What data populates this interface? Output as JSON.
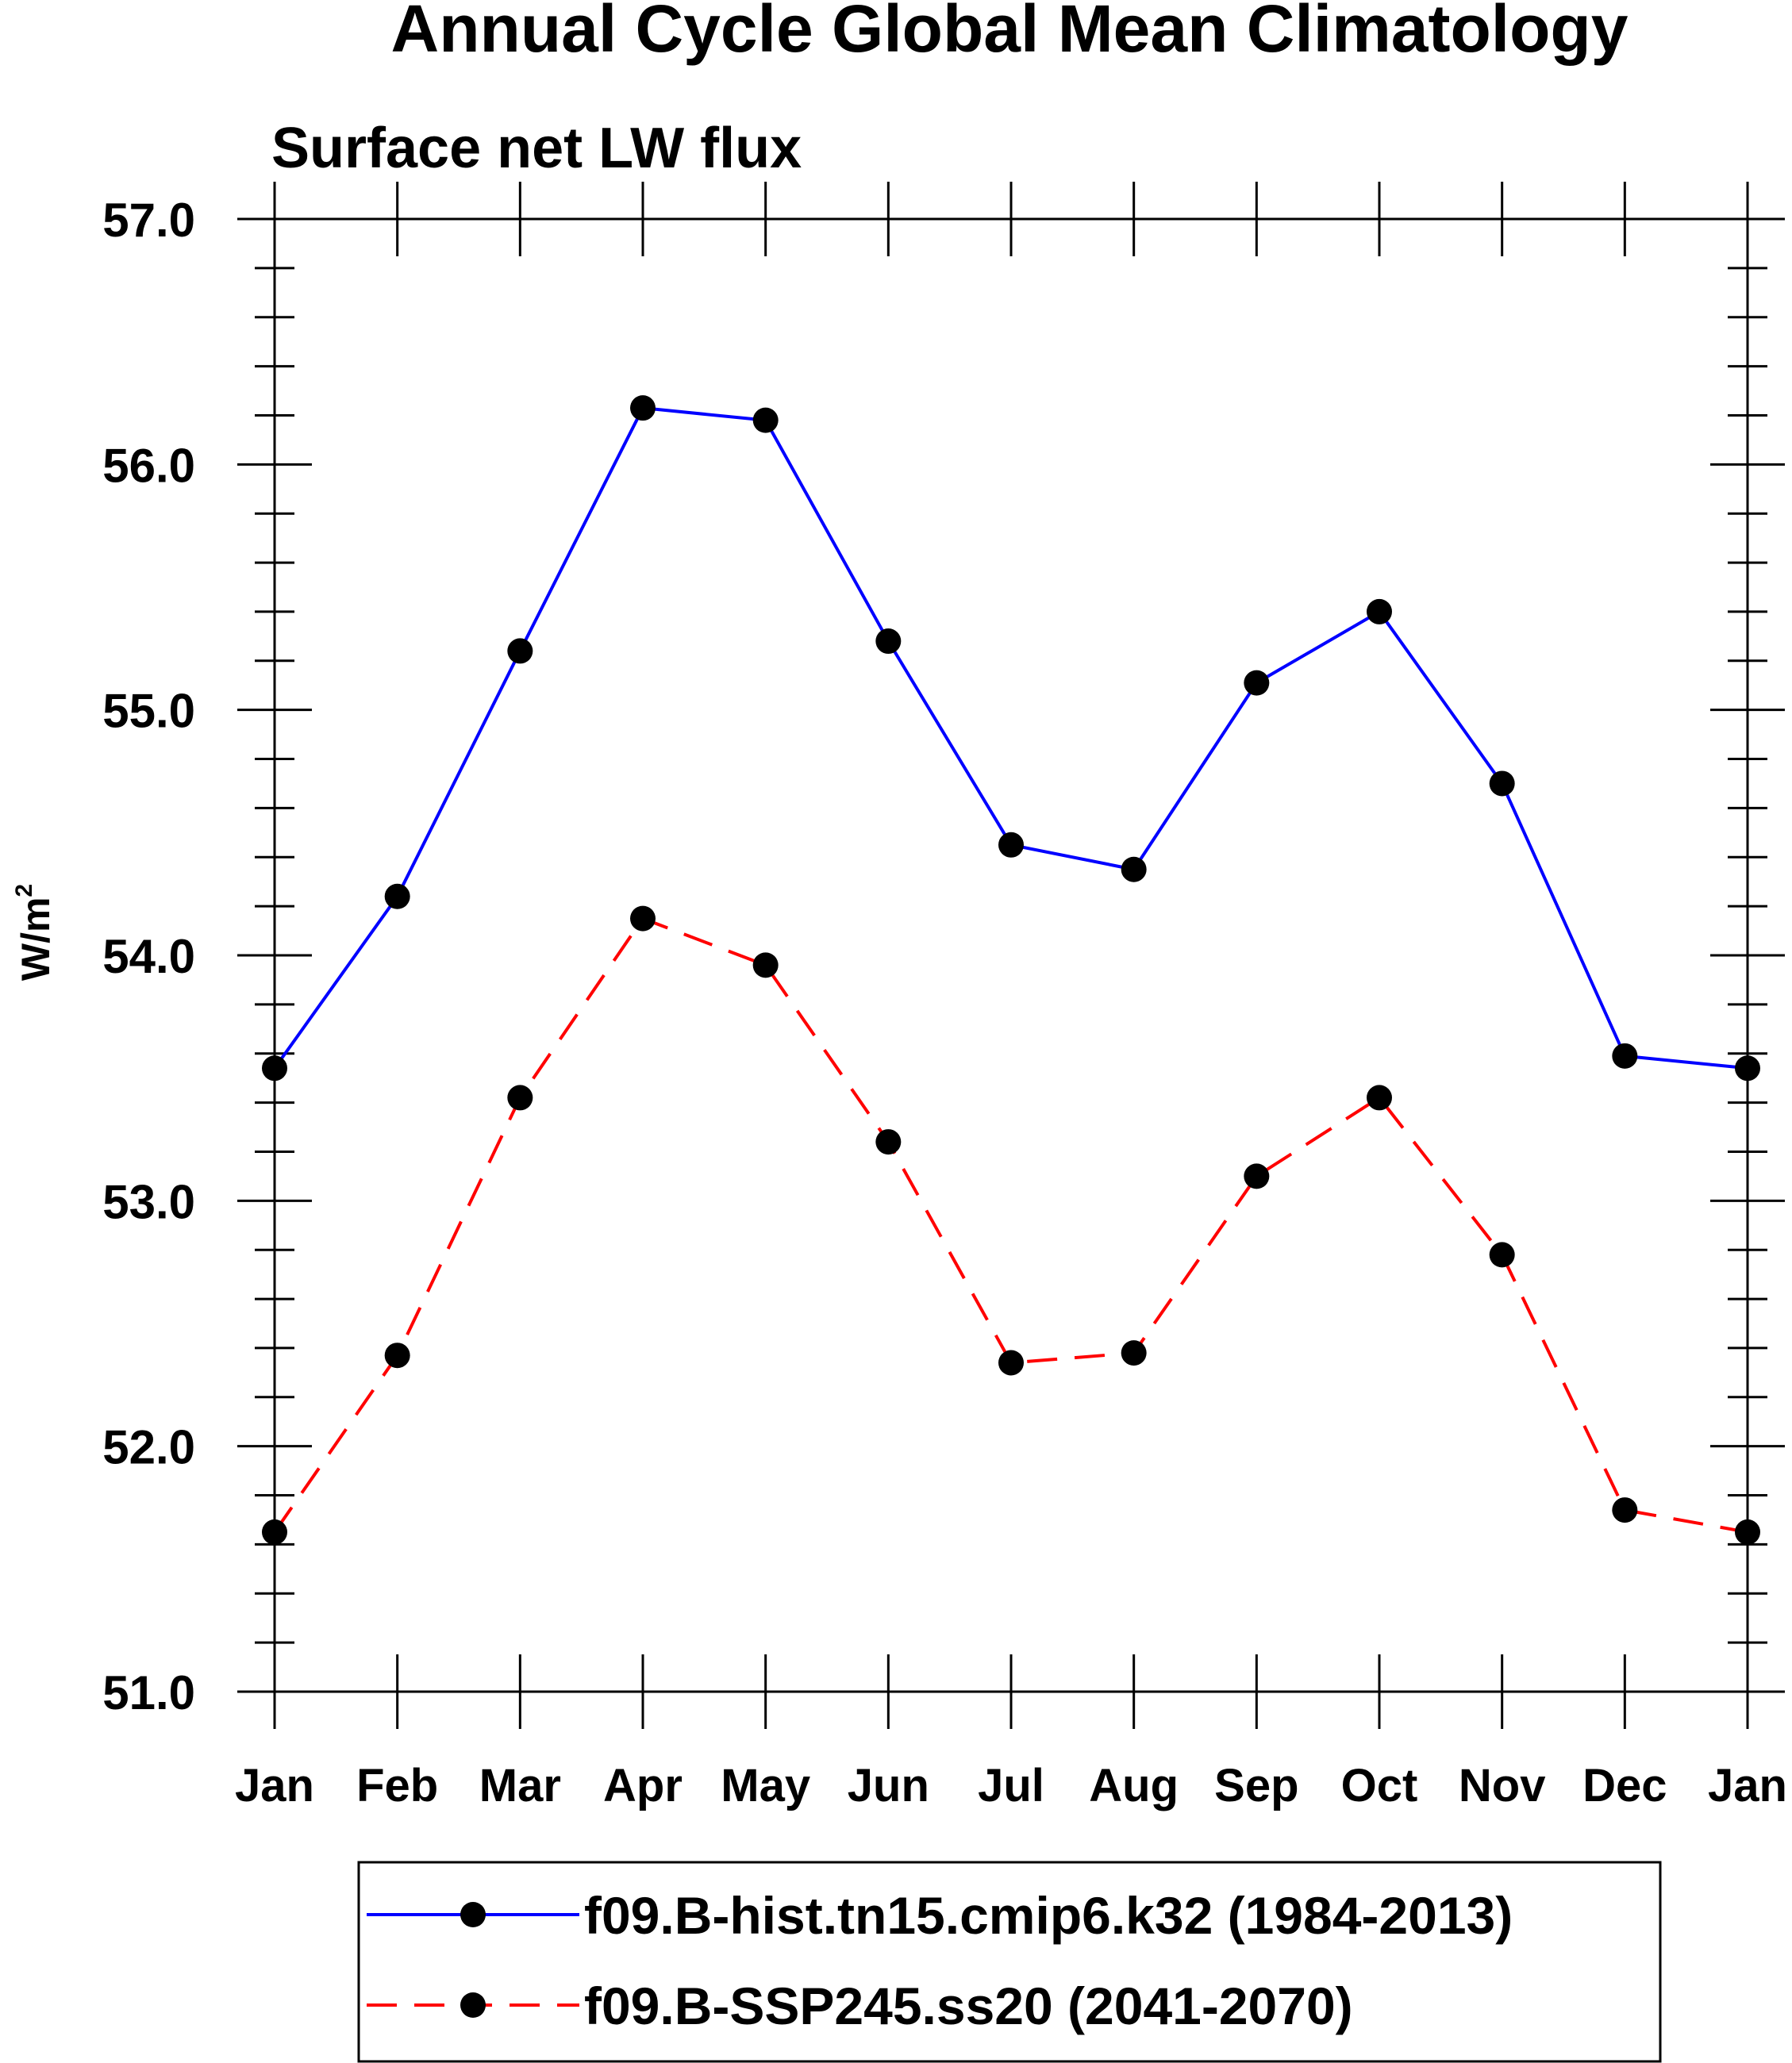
{
  "chart_data": {
    "type": "line",
    "title": "Annual Cycle Global Mean Climatology",
    "subtitle": "Surface net LW flux",
    "ylabel_base": "W/m",
    "ylabel_sup": "2",
    "xlabel": "",
    "ylim": [
      51.0,
      57.0
    ],
    "yticks": [
      "51.0",
      "52.0",
      "53.0",
      "54.0",
      "55.0",
      "56.0",
      "57.0"
    ],
    "categories": [
      "Jan",
      "Feb",
      "Mar",
      "Apr",
      "May",
      "Jun",
      "Jul",
      "Aug",
      "Sep",
      "Oct",
      "Nov",
      "Dec",
      "Jan"
    ],
    "series": [
      {
        "name": "f09.B-hist.tn15.cmip6.k32 (1984-2013)",
        "color": "#0000ff",
        "dash": "solid",
        "values": [
          53.54,
          54.24,
          55.24,
          56.23,
          56.18,
          55.28,
          54.45,
          54.35,
          55.11,
          55.4,
          54.7,
          53.59,
          53.54
        ]
      },
      {
        "name": "f09.B-SSP245.ss20 (2041-2070)",
        "color": "#ff0000",
        "dash": "dashed",
        "values": [
          51.65,
          52.37,
          53.42,
          54.15,
          53.96,
          53.24,
          52.34,
          52.38,
          53.1,
          53.42,
          52.78,
          51.74,
          51.65
        ]
      }
    ],
    "legend_position": "bottom",
    "marker_color": "#000000"
  }
}
